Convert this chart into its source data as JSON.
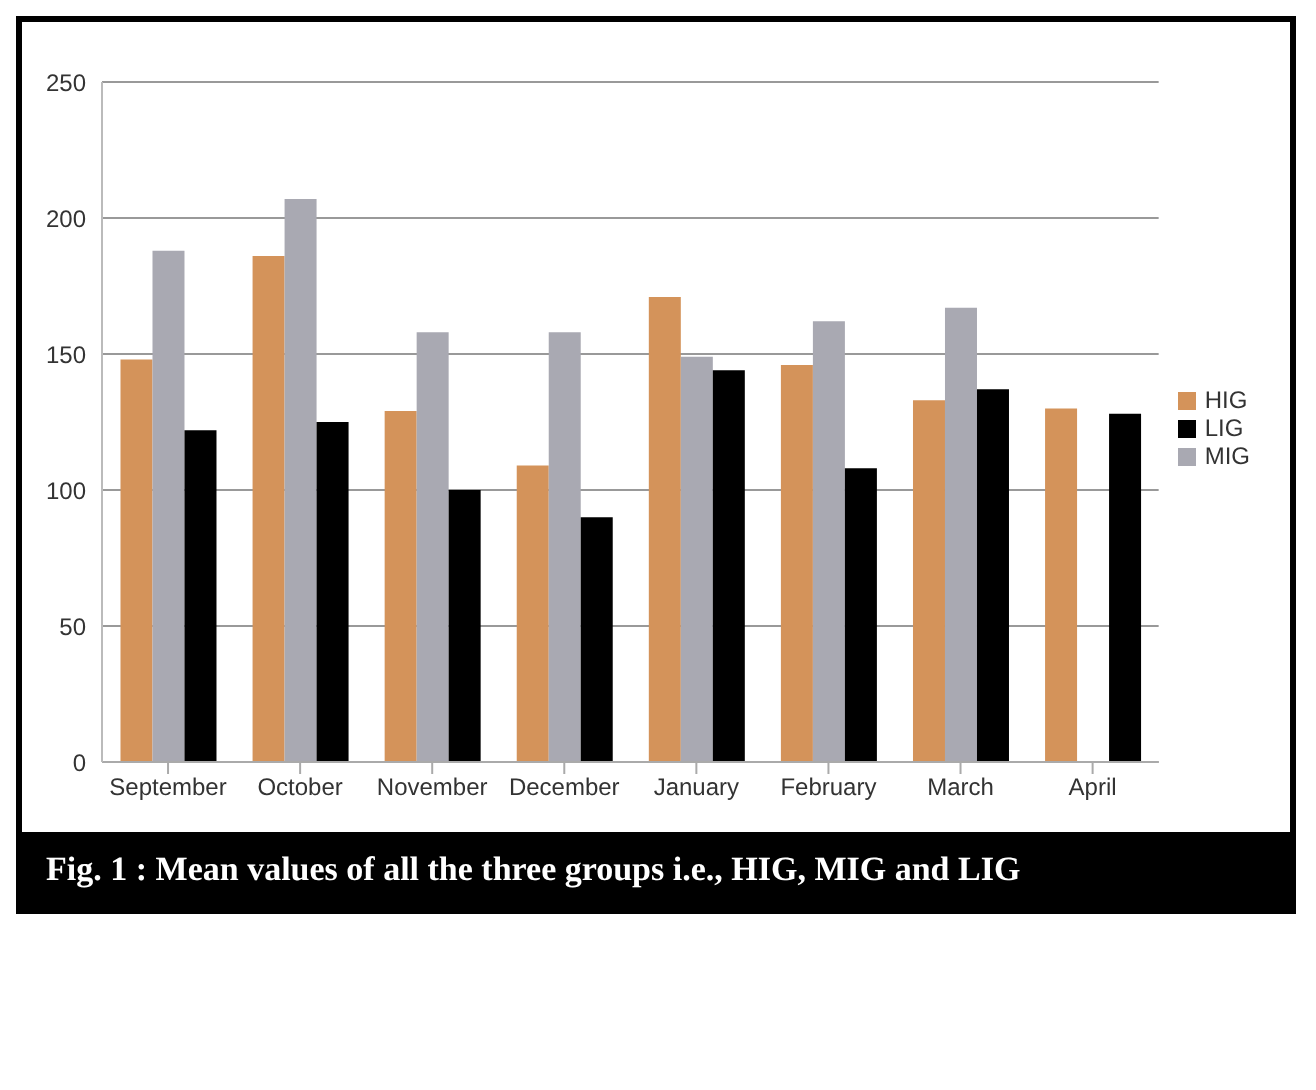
{
  "chart_data": {
    "type": "bar",
    "title": "Fig. 1 :  Mean values of all the three groups i.e., HIG, MIG and LIG",
    "categories": [
      "September",
      "October",
      "November",
      "December",
      "January",
      "February",
      "March",
      "April"
    ],
    "series": [
      {
        "name": "HIG",
        "color": "#d4935a",
        "values": [
          148,
          186,
          129,
          109,
          171,
          146,
          133,
          130
        ]
      },
      {
        "name": "MIG",
        "color": "#a9a9b2",
        "values": [
          188,
          207,
          158,
          158,
          149,
          162,
          167,
          null
        ]
      },
      {
        "name": "LIG",
        "color": "#000000",
        "values": [
          122,
          125,
          100,
          90,
          144,
          108,
          137,
          128
        ]
      }
    ],
    "ylim": [
      0,
      250
    ],
    "yticks": [
      0,
      50,
      100,
      150,
      200,
      250
    ],
    "grid": "y",
    "legend": "right"
  }
}
